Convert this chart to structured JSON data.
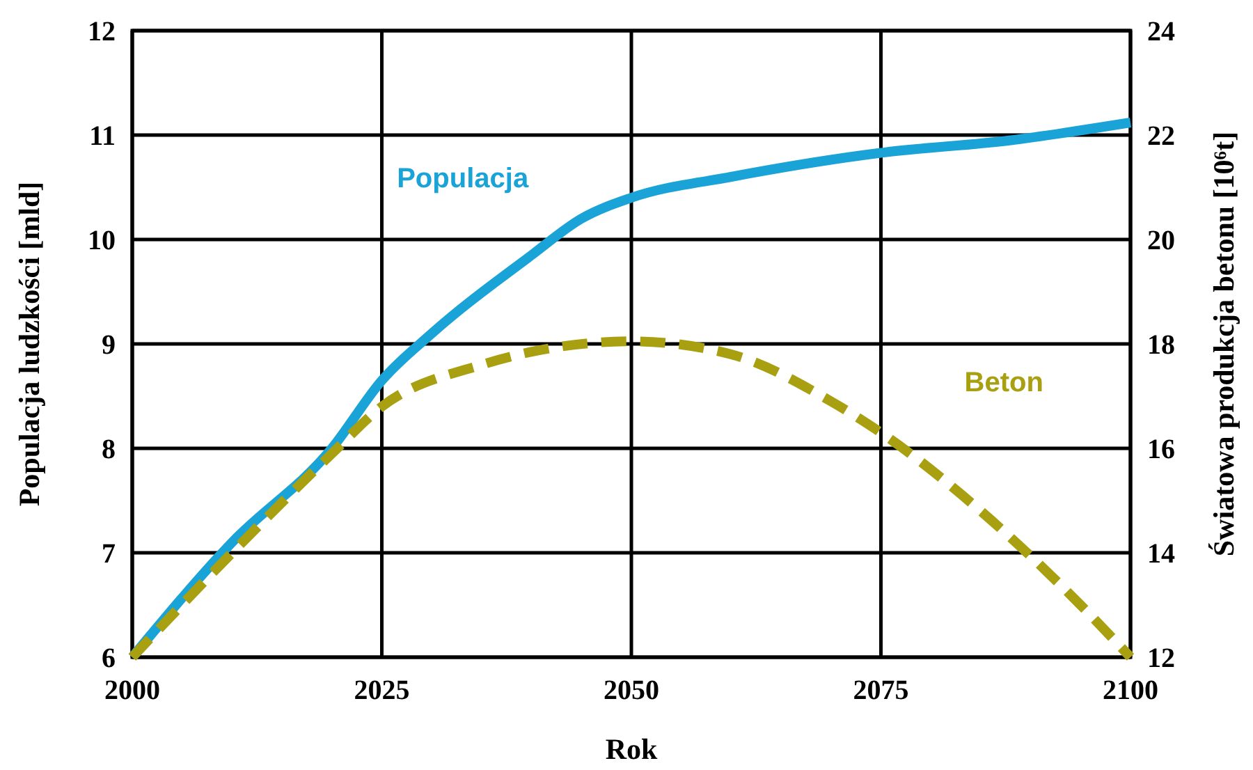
{
  "chart_data": {
    "type": "line",
    "xlabel": "Rok",
    "ylabel": "Populacja ludzkości [mld]",
    "y2label": "Światowa produkcja betonu [10⁶t]",
    "xlim": [
      2000,
      2100
    ],
    "xticks": [
      2000,
      2025,
      2050,
      2075,
      2100
    ],
    "ylim": [
      6,
      12
    ],
    "yticks": [
      6,
      7,
      8,
      9,
      10,
      11,
      12
    ],
    "y2lim": [
      12,
      24
    ],
    "y2ticks": [
      12,
      14,
      16,
      18,
      20,
      22,
      24
    ],
    "grid": true,
    "series": [
      {
        "name": "Populacja",
        "color": "#1aa3d6",
        "line_style": "solid",
        "x": [
          2000,
          2010,
          2020,
          2025,
          2030,
          2040,
          2045,
          2050,
          2060,
          2075,
          2088,
          2100
        ],
        "values": [
          6,
          7.1,
          8.0,
          8.65,
          9.1,
          9.85,
          10.2,
          10.4,
          10.6,
          10.83,
          10.95,
          11.12
        ]
      },
      {
        "name": "Beton",
        "color": "#a8a010",
        "line_style": "dashed",
        "axis": "y2",
        "x": [
          2000,
          2010,
          2020,
          2025,
          2035,
          2050,
          2060,
          2070,
          2075,
          2085,
          2095,
          2100
        ],
        "values": [
          12,
          14,
          15.9,
          16.8,
          17.6,
          18.05,
          17.8,
          16.9,
          16.3,
          14.8,
          13,
          12
        ]
      }
    ]
  }
}
